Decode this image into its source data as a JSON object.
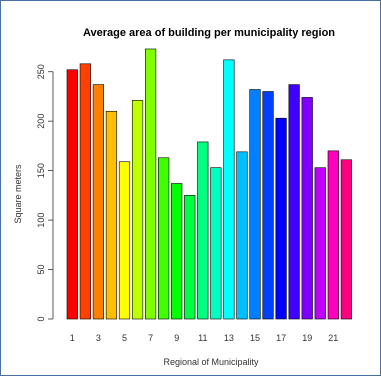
{
  "chart_data": {
    "type": "bar",
    "title": "Average area of building per municipality region",
    "xlabel": "Regional of Municipality",
    "ylabel": "Square meters",
    "ylim": [
      0,
      275
    ],
    "yticks": [
      0,
      50,
      100,
      150,
      200,
      250
    ],
    "categories": [
      "1",
      "2",
      "3",
      "4",
      "5",
      "6",
      "7",
      "8",
      "9",
      "10",
      "11",
      "12",
      "13",
      "14",
      "15",
      "16",
      "17",
      "18",
      "19",
      "20",
      "21",
      "22"
    ],
    "x_tick_labels": [
      "1",
      "3",
      "5",
      "7",
      "9",
      "11",
      "13",
      "15",
      "17",
      "19",
      "21"
    ],
    "values": [
      252,
      258,
      237,
      210,
      159,
      221,
      273,
      163,
      137,
      125,
      179,
      153,
      262,
      169,
      232,
      230,
      203,
      237,
      224,
      153,
      170,
      161
    ],
    "colors": [
      "#ff0000",
      "#ff4000",
      "#ff8000",
      "#ffbf00",
      "#ffff00",
      "#bfff00",
      "#80ff00",
      "#40ff00",
      "#00ff00",
      "#00ff40",
      "#00ff80",
      "#00ffbf",
      "#00ffff",
      "#00bfff",
      "#0080ff",
      "#0040ff",
      "#0000ff",
      "#4000ff",
      "#8000ff",
      "#bf00ff",
      "#ff00bf",
      "#ff0080"
    ]
  }
}
